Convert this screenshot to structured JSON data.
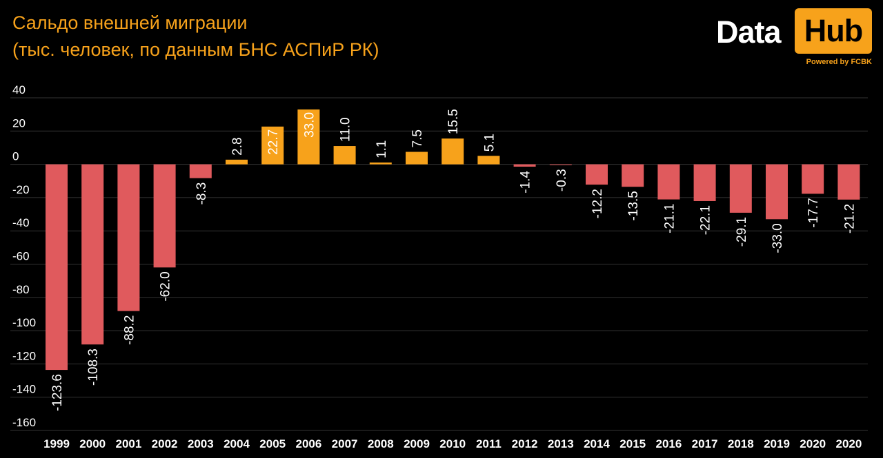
{
  "header": {
    "title": "Сальдо внешней миграции",
    "subtitle": "(тыс. человек, по данным БНС АСПиР РК)"
  },
  "logo": {
    "word_data": "Data",
    "word_hub": "Hub",
    "tagline": "Powered by FCBK"
  },
  "colors": {
    "background": "#000000",
    "positive": "#f7a21b",
    "negative": "#e05a5d",
    "title": "#f7a21b",
    "grid": "#333333"
  },
  "chart_data": {
    "type": "bar",
    "title": "Сальдо внешней миграции",
    "subtitle": "(тыс. человек, по данным БНС АСПиР РК)",
    "categories": [
      "1999",
      "2000",
      "2001",
      "2002",
      "2003",
      "2004",
      "2005",
      "2006",
      "2007",
      "2008",
      "2009",
      "2010",
      "2011",
      "2012",
      "2013",
      "2014",
      "2015",
      "2016",
      "2017",
      "2018",
      "2019",
      "2020",
      "2020"
    ],
    "values": [
      -123.6,
      -108.3,
      -88.2,
      -62.0,
      -8.3,
      2.8,
      22.7,
      33.0,
      11.0,
      1.1,
      7.5,
      15.5,
      5.1,
      -1.4,
      -0.3,
      -12.2,
      -13.5,
      -21.1,
      -22.1,
      -29.1,
      -33.0,
      -17.7,
      -21.2
    ],
    "value_labels": [
      "-123.6",
      "-108.3",
      "-88.2",
      "-62.0",
      "-8.3",
      "2.8",
      "22.7",
      "33.0",
      "11.0",
      "1.1",
      "7.5",
      "15.5",
      "5.1",
      "-1.4",
      "-0.3",
      "-12.2",
      "-13.5",
      "-21.1",
      "-22.1",
      "-29.1",
      "-33.0",
      "-17.7",
      "-21.2"
    ],
    "yticks": [
      40,
      20,
      0,
      -20,
      -40,
      -60,
      -80,
      -100,
      -120,
      -140,
      -160
    ],
    "ytick_labels": [
      "40",
      "20",
      "0",
      "-20",
      "-40",
      "-60",
      "-80",
      "-100",
      "-120",
      "-140",
      "-160"
    ],
    "ylim": [
      -160,
      40
    ],
    "xlabel": "",
    "ylabel": "",
    "grid": true,
    "legend": "none",
    "data_label_orientation": "vertical"
  }
}
